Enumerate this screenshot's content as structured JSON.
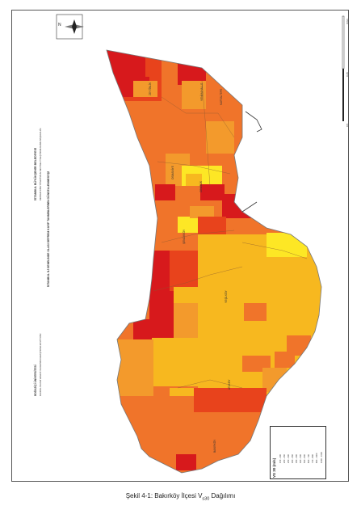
{
  "map": {
    "north_label": "N",
    "districts": [
      "ZEYTİNLİK",
      "YENİMAHALLE",
      "KARTALTEPE",
      "OSMANİYE",
      "CEVİZLİK",
      "ŞENLİKKÖY",
      "YEŞİLKÖY",
      "ATAKÖY",
      "BAKIRKÖY"
    ],
    "title_block": {
      "institution": "İSTANBUL BÜYÜKŞEHİR BELEDİYESİ",
      "department": "DEPREM RİSK YÖNETİMİ VE KENTSEL İYİLEŞTİRME DAİRE BAŞKANLIĞI",
      "project_title": "İSTANBUL İLİ GENELİNDE OLASI DEPREM KAYIP TAHMİNLERİNİN GÜNCELLENMESİ İŞİ",
      "university": "BOĞAZİÇİ ÜNİVERSİTESİ",
      "university_sub": "KANDİLLİ RASATHANESİ VE DEPREM ARAŞTIRMA ENSTİTÜSÜ"
    },
    "legend": {
      "title": "VS 30 (m/s)",
      "classes": [
        {
          "label": "150 - 200",
          "color": "#d7191c"
        },
        {
          "label": "200 - 250",
          "color": "#e8431c"
        },
        {
          "label": "250 - 300",
          "color": "#f0742a"
        },
        {
          "label": "300 - 350",
          "color": "#f39a2c"
        },
        {
          "label": "350 - 400",
          "color": "#f7b81f"
        },
        {
          "label": "400 - 500",
          "color": "#fde725"
        },
        {
          "label": "500 - 600",
          "color": "#b8e3f5"
        },
        {
          "label": "600 - 700",
          "color": "#7cc3ee"
        },
        {
          "label": "700 - 800",
          "color": "#3f8fe2"
        },
        {
          "label": "800 - 1000",
          "color": "#1f5ad0"
        },
        {
          "label": "1000 - 1500",
          "color": "#0c1f9e"
        }
      ]
    },
    "scale_labels": [
      "0 Km",
      "0.25",
      "0.5"
    ]
  },
  "caption": {
    "prefix": "Şekil 4-1: Bakırköy İlçesi V",
    "subscript": "s30",
    "suffix": " Dağılımı"
  }
}
